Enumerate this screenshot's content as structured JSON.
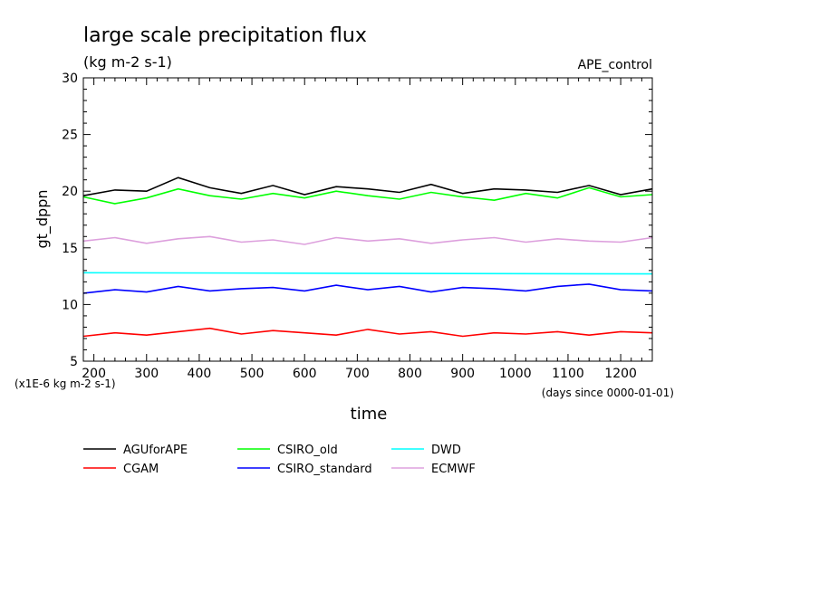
{
  "chart_data": {
    "type": "line",
    "title": "large scale precipitation flux",
    "subtitle": "(kg m-2 s-1)",
    "annotation_right": "APE_control",
    "xlabel": "time",
    "x_units": "(days since 0000-01-01)",
    "ylabel": "gt_dppn",
    "y_units": "(x1E-6 kg m-2 s-1)",
    "xlim": [
      180,
      1260
    ],
    "ylim": [
      5,
      30
    ],
    "x_ticks": [
      200,
      300,
      400,
      500,
      600,
      700,
      800,
      900,
      1000,
      1100,
      1200
    ],
    "y_ticks": [
      5,
      10,
      15,
      20,
      25,
      30
    ],
    "grid": false,
    "legend_position": "below",
    "series": [
      {
        "name": "AGUforAPE",
        "color": "#000000",
        "x": [
          180,
          240,
          300,
          360,
          420,
          480,
          540,
          600,
          660,
          720,
          780,
          840,
          900,
          960,
          1020,
          1080,
          1140,
          1200,
          1260
        ],
        "values": [
          19.6,
          20.1,
          20.0,
          21.2,
          20.3,
          19.8,
          20.5,
          19.7,
          20.4,
          20.2,
          19.9,
          20.6,
          19.8,
          20.2,
          20.1,
          19.9,
          20.5,
          19.7,
          20.2
        ]
      },
      {
        "name": "CGAM",
        "color": "#ff0000",
        "x": [
          180,
          240,
          300,
          360,
          420,
          480,
          540,
          600,
          660,
          720,
          780,
          840,
          900,
          960,
          1020,
          1080,
          1140,
          1200,
          1260
        ],
        "values": [
          7.2,
          7.5,
          7.3,
          7.6,
          7.9,
          7.4,
          7.7,
          7.5,
          7.3,
          7.8,
          7.4,
          7.6,
          7.2,
          7.5,
          7.4,
          7.6,
          7.3,
          7.6,
          7.5
        ]
      },
      {
        "name": "CSIRO_old",
        "color": "#00ff00",
        "x": [
          180,
          240,
          300,
          360,
          420,
          480,
          540,
          600,
          660,
          720,
          780,
          840,
          900,
          960,
          1020,
          1080,
          1140,
          1200,
          1260
        ],
        "values": [
          19.5,
          18.9,
          19.4,
          20.2,
          19.6,
          19.3,
          19.8,
          19.4,
          20.0,
          19.6,
          19.3,
          19.9,
          19.5,
          19.2,
          19.8,
          19.4,
          20.3,
          19.5,
          19.7
        ]
      },
      {
        "name": "CSIRO_standard",
        "color": "#0000ff",
        "x": [
          180,
          240,
          300,
          360,
          420,
          480,
          540,
          600,
          660,
          720,
          780,
          840,
          900,
          960,
          1020,
          1080,
          1140,
          1200,
          1260
        ],
        "values": [
          11.0,
          11.3,
          11.1,
          11.6,
          11.2,
          11.4,
          11.5,
          11.2,
          11.7,
          11.3,
          11.6,
          11.1,
          11.5,
          11.4,
          11.2,
          11.6,
          11.8,
          11.3,
          11.2
        ]
      },
      {
        "name": "DWD",
        "color": "#00ffff",
        "x": [
          180,
          1260
        ],
        "values": [
          12.8,
          12.7
        ]
      },
      {
        "name": "ECMWF",
        "color": "#dda0dd",
        "x": [
          180,
          240,
          300,
          360,
          420,
          480,
          540,
          600,
          660,
          720,
          780,
          840,
          900,
          960,
          1020,
          1080,
          1140,
          1200,
          1260
        ],
        "values": [
          15.6,
          15.9,
          15.4,
          15.8,
          16.0,
          15.5,
          15.7,
          15.3,
          15.9,
          15.6,
          15.8,
          15.4,
          15.7,
          15.9,
          15.5,
          15.8,
          15.6,
          15.5,
          15.9
        ]
      }
    ]
  }
}
